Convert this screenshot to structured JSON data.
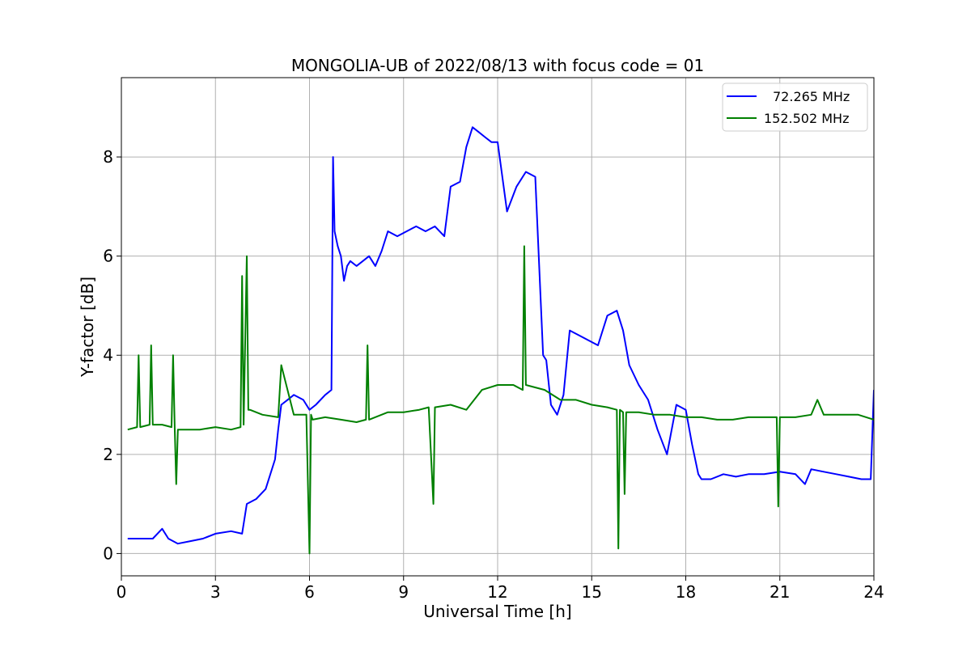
{
  "chart_data": {
    "type": "line",
    "title": "MONGOLIA-UB of 2022/08/13 with focus code = 01",
    "xlabel": "Universal Time [h]",
    "ylabel": "Y-factor [dB]",
    "xlim": [
      0,
      24
    ],
    "ylim": [
      -0.45,
      9.6
    ],
    "xticks": [
      0,
      3,
      6,
      9,
      12,
      15,
      18,
      21,
      24
    ],
    "yticks": [
      0,
      2,
      4,
      6,
      8
    ],
    "grid": true,
    "legend_position": "top-right",
    "series": [
      {
        "name": "72.265 MHz",
        "color": "#0000ff",
        "x": [
          0.2,
          0.6,
          1.0,
          1.3,
          1.5,
          1.8,
          2.2,
          2.6,
          3.0,
          3.5,
          3.85,
          4.0,
          4.3,
          4.6,
          4.9,
          5.0,
          5.1,
          5.3,
          5.5,
          5.8,
          6.0,
          6.2,
          6.5,
          6.7,
          6.75,
          6.8,
          6.9,
          7.0,
          7.1,
          7.2,
          7.3,
          7.5,
          7.7,
          7.9,
          8.1,
          8.3,
          8.5,
          8.8,
          9.1,
          9.4,
          9.7,
          10.0,
          10.3,
          10.5,
          10.8,
          11.0,
          11.2,
          11.4,
          11.6,
          11.8,
          12.0,
          12.3,
          12.6,
          12.9,
          13.2,
          13.45,
          13.55,
          13.7,
          13.9,
          14.1,
          14.3,
          14.6,
          14.9,
          15.2,
          15.5,
          15.8,
          16.0,
          16.2,
          16.5,
          16.8,
          17.1,
          17.4,
          17.7,
          18.0,
          18.2,
          18.4,
          18.5,
          18.8,
          19.2,
          19.6,
          20.0,
          20.5,
          21.0,
          21.5,
          21.8,
          22.0,
          22.4,
          22.8,
          23.2,
          23.6,
          23.9,
          24.0
        ],
        "y": [
          0.3,
          0.3,
          0.3,
          0.5,
          0.3,
          0.2,
          0.25,
          0.3,
          0.4,
          0.45,
          0.4,
          1.0,
          1.1,
          1.3,
          1.9,
          2.5,
          3.0,
          3.1,
          3.2,
          3.1,
          2.9,
          3.0,
          3.2,
          3.3,
          8.0,
          6.5,
          6.2,
          6.0,
          5.5,
          5.8,
          5.9,
          5.8,
          5.9,
          6.0,
          5.8,
          6.1,
          6.5,
          6.4,
          6.5,
          6.6,
          6.5,
          6.6,
          6.4,
          7.4,
          7.5,
          8.2,
          8.6,
          8.5,
          8.4,
          8.3,
          8.3,
          6.9,
          7.4,
          7.7,
          7.6,
          4.0,
          3.9,
          3.0,
          2.8,
          3.2,
          4.5,
          4.4,
          4.3,
          4.2,
          4.8,
          4.9,
          4.5,
          3.8,
          3.4,
          3.1,
          2.5,
          2.0,
          3.0,
          2.9,
          2.2,
          1.6,
          1.5,
          1.5,
          1.6,
          1.55,
          1.6,
          1.6,
          1.65,
          1.6,
          1.4,
          1.7,
          1.65,
          1.6,
          1.55,
          1.5,
          1.5,
          3.3
        ]
      },
      {
        "name": "152.502 MHz",
        "color": "#008000",
        "x": [
          0.2,
          0.5,
          0.55,
          0.6,
          0.9,
          0.95,
          1.0,
          1.3,
          1.6,
          1.65,
          1.7,
          1.75,
          1.8,
          2.5,
          3.0,
          3.5,
          3.8,
          3.85,
          3.9,
          4.0,
          4.05,
          4.1,
          4.5,
          5.0,
          5.1,
          5.5,
          5.9,
          6.0,
          6.05,
          6.1,
          6.5,
          7.0,
          7.5,
          7.8,
          7.85,
          7.9,
          8.5,
          9.0,
          9.5,
          9.8,
          9.95,
          10.0,
          10.5,
          11.0,
          11.5,
          12.0,
          12.5,
          12.8,
          12.85,
          12.9,
          13.5,
          14.0,
          14.5,
          15.0,
          15.5,
          15.8,
          15.85,
          15.9,
          16.0,
          16.05,
          16.1,
          16.5,
          17.0,
          17.5,
          18.0,
          18.5,
          19.0,
          19.5,
          20.0,
          20.5,
          20.9,
          20.95,
          21.0,
          21.5,
          22.0,
          22.2,
          22.4,
          23.0,
          23.5,
          24.0
        ],
        "y": [
          2.5,
          2.55,
          4.0,
          2.55,
          2.6,
          4.2,
          2.6,
          2.6,
          2.55,
          4.0,
          2.55,
          1.4,
          2.5,
          2.5,
          2.55,
          2.5,
          2.55,
          5.6,
          2.6,
          6.0,
          2.9,
          2.9,
          2.8,
          2.75,
          3.8,
          2.8,
          2.8,
          0.0,
          2.8,
          2.7,
          2.75,
          2.7,
          2.65,
          2.7,
          4.2,
          2.7,
          2.85,
          2.85,
          2.9,
          2.95,
          1.0,
          2.95,
          3.0,
          2.9,
          3.3,
          3.4,
          3.4,
          3.3,
          6.2,
          3.4,
          3.3,
          3.1,
          3.1,
          3.0,
          2.95,
          2.9,
          0.1,
          2.9,
          2.85,
          1.2,
          2.85,
          2.85,
          2.8,
          2.8,
          2.75,
          2.75,
          2.7,
          2.7,
          2.75,
          2.75,
          2.75,
          0.95,
          2.75,
          2.75,
          2.8,
          3.1,
          2.8,
          2.8,
          2.8,
          2.7
        ]
      }
    ]
  }
}
